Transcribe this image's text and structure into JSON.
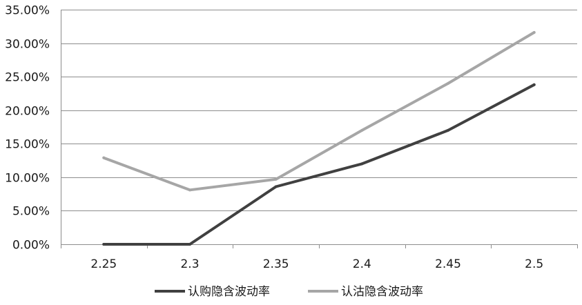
{
  "chart_data": {
    "type": "line",
    "title": "",
    "xlabel": "",
    "ylabel": "",
    "categories": [
      "2.25",
      "2.3",
      "2.35",
      "2.4",
      "2.45",
      "2.5"
    ],
    "ylim": [
      0,
      35
    ],
    "y_ticks": [
      "0.00%",
      "5.00%",
      "10.00%",
      "15.00%",
      "20.00%",
      "25.00%",
      "30.00%",
      "35.00%"
    ],
    "y_unit": "%",
    "grid": true,
    "legend_position": "bottom",
    "series": [
      {
        "name": "认购隐含波动率",
        "color": "#404040",
        "values": [
          0.0,
          0.0,
          8.6,
          12.0,
          17.0,
          23.8
        ]
      },
      {
        "name": "认沽隐含波动率",
        "color": "#a6a6a6",
        "values": [
          12.9,
          8.1,
          9.7,
          17.0,
          24.0,
          31.6
        ]
      }
    ]
  }
}
